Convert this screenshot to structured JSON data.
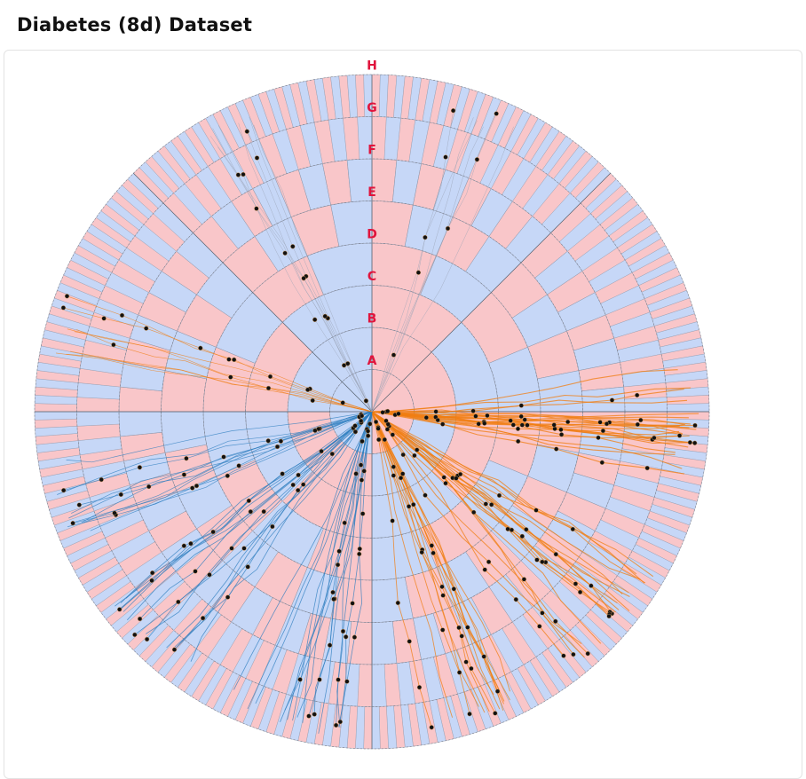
{
  "title": "Diabetes (8d) Dataset",
  "levels": [
    "A",
    "B",
    "C",
    "D",
    "E",
    "F",
    "G",
    "H"
  ],
  "colors": {
    "segment_pink": "#f9c6c9",
    "segment_blue": "#c6d7f7",
    "level_label": "#e0143c",
    "path_orange": "#f07e12",
    "path_blue": "#2d7dbf",
    "node": "#111111"
  }
}
